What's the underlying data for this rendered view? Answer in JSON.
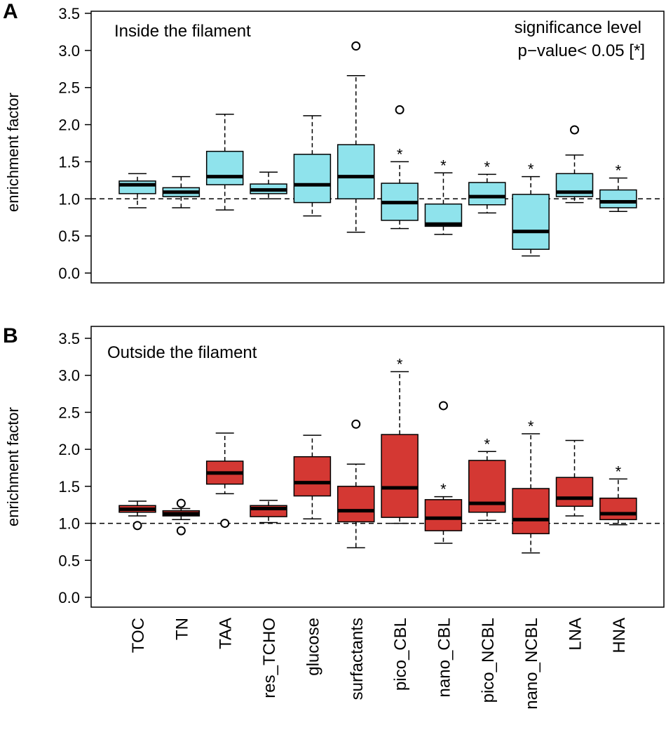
{
  "figure": {
    "categories": [
      "TOC",
      "TN",
      "TAA",
      "res_TCHO",
      "glucose",
      "surfactants",
      "pico_CBL",
      "nano_CBL",
      "pico_NCBL",
      "nano_NCBL",
      "LNA",
      "HNA"
    ],
    "ylabel": "enrichment factor",
    "significance_note": [
      "significance level",
      "p−value< 0.05 [*]"
    ],
    "significance_mark": "*",
    "yticks": [
      "0.0",
      "0.5",
      "1.0",
      "1.5",
      "2.0",
      "2.5",
      "3.0",
      "3.5"
    ]
  },
  "chart_data": [
    {
      "type": "boxplot",
      "panel_label": "A",
      "title": "Inside the filament",
      "ylabel": "enrichment factor",
      "ylim": [
        -0.15,
        3.6
      ],
      "reference_line": 1.0,
      "box_color": "#8fe3ec",
      "categories": [
        "TOC",
        "TN",
        "TAA",
        "res_TCHO",
        "glucose",
        "surfactants",
        "pico_CBL",
        "nano_CBL",
        "pico_NCBL",
        "nano_NCBL",
        "LNA",
        "HNA"
      ],
      "boxes": [
        {
          "category": "TOC",
          "whisker_low": 0.88,
          "q1": 1.07,
          "median": 1.19,
          "q3": 1.24,
          "whisker_high": 1.34,
          "outliers": [],
          "significant": false
        },
        {
          "category": "TN",
          "whisker_low": 0.88,
          "q1": 1.03,
          "median": 1.09,
          "q3": 1.15,
          "whisker_high": 1.3,
          "outliers": [],
          "significant": false
        },
        {
          "category": "TAA",
          "whisker_low": 0.85,
          "q1": 1.19,
          "median": 1.3,
          "q3": 1.64,
          "whisker_high": 2.14,
          "outliers": [],
          "significant": false
        },
        {
          "category": "res_TCHO",
          "whisker_low": 1.0,
          "q1": 1.07,
          "median": 1.12,
          "q3": 1.2,
          "whisker_high": 1.36,
          "outliers": [],
          "significant": false
        },
        {
          "category": "glucose",
          "whisker_low": 0.77,
          "q1": 0.95,
          "median": 1.19,
          "q3": 1.6,
          "whisker_high": 2.12,
          "outliers": [],
          "significant": false
        },
        {
          "category": "surfactants",
          "whisker_low": 0.55,
          "q1": 1.0,
          "median": 1.3,
          "q3": 1.73,
          "whisker_high": 2.66,
          "outliers": [
            3.06
          ],
          "significant": false
        },
        {
          "category": "pico_CBL",
          "whisker_low": 0.6,
          "q1": 0.71,
          "median": 0.95,
          "q3": 1.21,
          "whisker_high": 1.5,
          "outliers": [
            2.2
          ],
          "significant": true
        },
        {
          "category": "nano_CBL",
          "whisker_low": 0.52,
          "q1": 0.63,
          "median": 0.66,
          "q3": 0.93,
          "whisker_high": 1.35,
          "outliers": [],
          "significant": true
        },
        {
          "category": "pico_NCBL",
          "whisker_low": 0.81,
          "q1": 0.92,
          "median": 1.03,
          "q3": 1.22,
          "whisker_high": 1.33,
          "outliers": [],
          "significant": true
        },
        {
          "category": "nano_NCBL",
          "whisker_low": 0.23,
          "q1": 0.32,
          "median": 0.56,
          "q3": 1.06,
          "whisker_high": 1.3,
          "outliers": [],
          "significant": true
        },
        {
          "category": "LNA",
          "whisker_low": 0.95,
          "q1": 1.03,
          "median": 1.09,
          "q3": 1.34,
          "whisker_high": 1.59,
          "outliers": [
            1.93
          ],
          "significant": false
        },
        {
          "category": "HNA",
          "whisker_low": 0.83,
          "q1": 0.88,
          "median": 0.96,
          "q3": 1.12,
          "whisker_high": 1.28,
          "outliers": [],
          "significant": true
        }
      ]
    },
    {
      "type": "boxplot",
      "panel_label": "B",
      "title": "Outside the filament",
      "ylabel": "enrichment factor",
      "ylim": [
        -0.15,
        3.6
      ],
      "reference_line": 1.0,
      "box_color": "#d43833",
      "categories": [
        "TOC",
        "TN",
        "TAA",
        "res_TCHO",
        "glucose",
        "surfactants",
        "pico_CBL",
        "nano_CBL",
        "pico_NCBL",
        "nano_NCBL",
        "LNA",
        "HNA"
      ],
      "boxes": [
        {
          "category": "TOC",
          "whisker_low": 1.1,
          "q1": 1.15,
          "median": 1.19,
          "q3": 1.24,
          "whisker_high": 1.3,
          "outliers": [
            0.97
          ],
          "significant": false
        },
        {
          "category": "TN",
          "whisker_low": 1.05,
          "q1": 1.1,
          "median": 1.13,
          "q3": 1.17,
          "whisker_high": 1.2,
          "outliers": [
            1.27,
            0.9
          ],
          "significant": false
        },
        {
          "category": "TAA",
          "whisker_low": 1.4,
          "q1": 1.53,
          "median": 1.68,
          "q3": 1.84,
          "whisker_high": 2.22,
          "outliers": [
            1.0
          ],
          "significant": false
        },
        {
          "category": "res_TCHO",
          "whisker_low": 1.01,
          "q1": 1.09,
          "median": 1.2,
          "q3": 1.24,
          "whisker_high": 1.31,
          "outliers": [],
          "significant": false
        },
        {
          "category": "glucose",
          "whisker_low": 1.06,
          "q1": 1.37,
          "median": 1.55,
          "q3": 1.9,
          "whisker_high": 2.19,
          "outliers": [],
          "significant": false
        },
        {
          "category": "surfactants",
          "whisker_low": 0.67,
          "q1": 1.02,
          "median": 1.17,
          "q3": 1.5,
          "whisker_high": 1.8,
          "outliers": [
            2.34
          ],
          "significant": false
        },
        {
          "category": "pico_CBL",
          "whisker_low": 1.0,
          "q1": 1.08,
          "median": 1.48,
          "q3": 2.2,
          "whisker_high": 3.05,
          "outliers": [],
          "significant": true
        },
        {
          "category": "nano_CBL",
          "whisker_low": 0.73,
          "q1": 0.9,
          "median": 1.07,
          "q3": 1.32,
          "whisker_high": 1.36,
          "outliers": [
            2.59
          ],
          "significant": true
        },
        {
          "category": "pico_NCBL",
          "whisker_low": 1.04,
          "q1": 1.15,
          "median": 1.27,
          "q3": 1.85,
          "whisker_high": 1.97,
          "outliers": [],
          "significant": true
        },
        {
          "category": "nano_NCBL",
          "whisker_low": 0.6,
          "q1": 0.86,
          "median": 1.05,
          "q3": 1.47,
          "whisker_high": 2.21,
          "outliers": [],
          "significant": true
        },
        {
          "category": "LNA",
          "whisker_low": 1.1,
          "q1": 1.23,
          "median": 1.34,
          "q3": 1.62,
          "whisker_high": 2.12,
          "outliers": [],
          "significant": false
        },
        {
          "category": "HNA",
          "whisker_low": 0.98,
          "q1": 1.05,
          "median": 1.13,
          "q3": 1.34,
          "whisker_high": 1.6,
          "outliers": [],
          "significant": true
        }
      ]
    }
  ]
}
